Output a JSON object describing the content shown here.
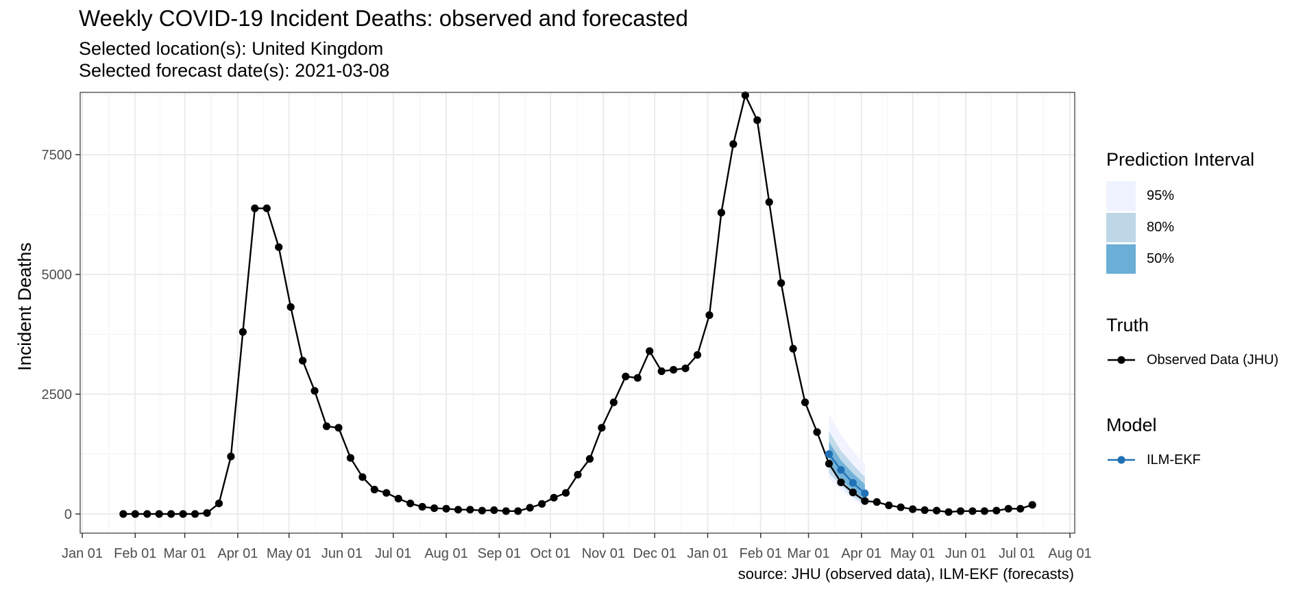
{
  "title": "Weekly COVID-19 Incident Deaths: observed and forecasted",
  "subtitle_location": "Selected location(s): United Kingdom",
  "subtitle_date": "Selected forecast date(s): 2021-03-08",
  "caption": "source: JHU (observed data), ILM-EKF (forecasts)",
  "colors": {
    "truth": "#000000",
    "model": "#2171b5",
    "pi95": "#eff3ff",
    "pi80": "#bdd7e7",
    "pi50": "#6baed6",
    "grid_major": "#ebebeb",
    "grid_minor": "#f5f5f5"
  },
  "legend": {
    "interval_title": "Prediction Interval",
    "intervals": [
      {
        "label": "95%",
        "color": "#eff3ff"
      },
      {
        "label": "80%",
        "color": "#bdd7e7"
      },
      {
        "label": "50%",
        "color": "#6baed6"
      }
    ],
    "truth_title": "Truth",
    "truth_label": "Observed Data (JHU)",
    "model_title": "Model",
    "model_label": "ILM-EKF"
  },
  "chart_data": {
    "type": "line",
    "ylabel": "Incident Deaths",
    "xlabel": "",
    "xlim": [
      "2020-01-01",
      "2021-08-01"
    ],
    "ylim": [
      -400,
      8800
    ],
    "y_ticks": [
      0,
      2500,
      5000,
      7500
    ],
    "x_ticks": [
      {
        "date": "2020-01-01",
        "label": "Jan 01"
      },
      {
        "date": "2020-02-01",
        "label": "Feb 01"
      },
      {
        "date": "2020-03-01",
        "label": "Mar 01"
      },
      {
        "date": "2020-04-01",
        "label": "Apr 01"
      },
      {
        "date": "2020-05-01",
        "label": "May 01"
      },
      {
        "date": "2020-06-01",
        "label": "Jun 01"
      },
      {
        "date": "2020-07-01",
        "label": "Jul 01"
      },
      {
        "date": "2020-08-01",
        "label": "Aug 01"
      },
      {
        "date": "2020-09-01",
        "label": "Sep 01"
      },
      {
        "date": "2020-10-01",
        "label": "Oct 01"
      },
      {
        "date": "2020-11-01",
        "label": "Nov 01"
      },
      {
        "date": "2020-12-01",
        "label": "Dec 01"
      },
      {
        "date": "2021-01-01",
        "label": "Jan 01"
      },
      {
        "date": "2021-02-01",
        "label": "Feb 01"
      },
      {
        "date": "2021-03-01",
        "label": "Mar 01"
      },
      {
        "date": "2021-04-01",
        "label": "Apr 01"
      },
      {
        "date": "2021-05-01",
        "label": "May 01"
      },
      {
        "date": "2021-06-01",
        "label": "Jun 01"
      },
      {
        "date": "2021-07-01",
        "label": "Jul 01"
      },
      {
        "date": "2021-08-01",
        "label": "Aug 01"
      }
    ],
    "grid": true,
    "legend_position": "right",
    "series": [
      {
        "name": "Observed Data (JHU)",
        "x": [
          "2020-01-25",
          "2020-02-01",
          "2020-02-08",
          "2020-02-15",
          "2020-02-22",
          "2020-02-29",
          "2020-03-07",
          "2020-03-14",
          "2020-03-21",
          "2020-03-28",
          "2020-04-04",
          "2020-04-11",
          "2020-04-18",
          "2020-04-25",
          "2020-05-02",
          "2020-05-09",
          "2020-05-16",
          "2020-05-23",
          "2020-05-30",
          "2020-06-06",
          "2020-06-13",
          "2020-06-20",
          "2020-06-27",
          "2020-07-04",
          "2020-07-11",
          "2020-07-18",
          "2020-07-25",
          "2020-08-01",
          "2020-08-08",
          "2020-08-15",
          "2020-08-22",
          "2020-08-29",
          "2020-09-05",
          "2020-09-12",
          "2020-09-19",
          "2020-09-26",
          "2020-10-03",
          "2020-10-10",
          "2020-10-17",
          "2020-10-24",
          "2020-10-31",
          "2020-11-07",
          "2020-11-14",
          "2020-11-21",
          "2020-11-28",
          "2020-12-05",
          "2020-12-12",
          "2020-12-19",
          "2020-12-26",
          "2021-01-02",
          "2021-01-09",
          "2021-01-16",
          "2021-01-23",
          "2021-01-30",
          "2021-02-06",
          "2021-02-13",
          "2021-02-20",
          "2021-02-27",
          "2021-03-06",
          "2021-03-13",
          "2021-03-20",
          "2021-03-27",
          "2021-04-03",
          "2021-04-10",
          "2021-04-17",
          "2021-04-24",
          "2021-05-01",
          "2021-05-08",
          "2021-05-15",
          "2021-05-22",
          "2021-05-29",
          "2021-06-05",
          "2021-06-12",
          "2021-06-19",
          "2021-06-26",
          "2021-07-03",
          "2021-07-10"
        ],
        "y": [
          0,
          0,
          0,
          0,
          0,
          0,
          0,
          20,
          220,
          1200,
          3800,
          6380,
          6380,
          5570,
          4320,
          3200,
          2570,
          1830,
          1800,
          1170,
          770,
          510,
          440,
          320,
          220,
          150,
          120,
          110,
          90,
          90,
          70,
          80,
          60,
          60,
          130,
          210,
          340,
          440,
          820,
          1150,
          1800,
          2330,
          2870,
          2840,
          3400,
          2980,
          3010,
          3040,
          3320,
          4150,
          6290,
          7720,
          8740,
          8220,
          6510,
          4820,
          3450,
          2330,
          1710,
          1050,
          660,
          450,
          270,
          250,
          180,
          140,
          100,
          80,
          70,
          40,
          60,
          60,
          60,
          70,
          110,
          110,
          190
        ]
      },
      {
        "name": "ILM-EKF",
        "x": [
          "2021-03-13",
          "2021-03-20",
          "2021-03-27",
          "2021-04-03"
        ],
        "y": [
          1250,
          920,
          650,
          430
        ],
        "pi50": [
          [
            1000,
            1500
          ],
          [
            720,
            1120
          ],
          [
            480,
            850
          ],
          [
            300,
            620
          ]
        ],
        "pi80": [
          [
            850,
            1720
          ],
          [
            600,
            1320
          ],
          [
            360,
            1030
          ],
          [
            200,
            770
          ]
        ],
        "pi95": [
          [
            740,
            2100
          ],
          [
            500,
            1650
          ],
          [
            300,
            1320
          ],
          [
            140,
            1050
          ]
        ]
      }
    ]
  }
}
